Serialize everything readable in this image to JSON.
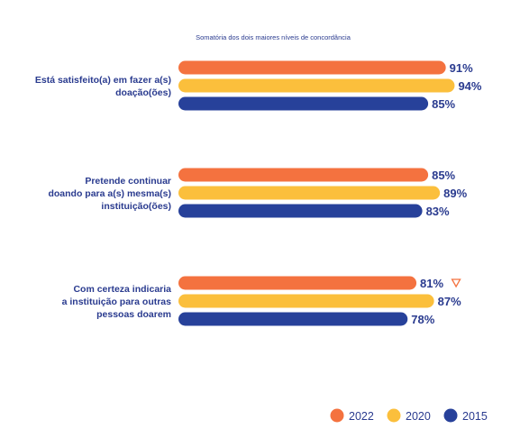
{
  "chart_data": {
    "type": "bar",
    "orientation": "horizontal",
    "subtitle": "Somatória dos dois maiores níveis de concordância",
    "categories": [
      [
        "Está satisfeito(a) em fazer a(s)",
        "doação(ões)"
      ],
      [
        "Pretende continuar",
        "doando para a(s) mesma(s)",
        "instituição(ões)"
      ],
      [
        "Com certeza indicaria",
        "a instituição para outras",
        "pessoas doarem"
      ]
    ],
    "series": [
      {
        "name": "2022",
        "color": "#f4723f",
        "values": [
          91,
          85,
          81
        ],
        "labels": [
          "91%",
          "85%",
          "81%"
        ]
      },
      {
        "name": "2020",
        "color": "#fbbf3c",
        "values": [
          94,
          89,
          87
        ],
        "labels": [
          "94%",
          "89%",
          "87%"
        ]
      },
      {
        "name": "2015",
        "color": "#27419a",
        "values": [
          85,
          83,
          78
        ],
        "labels": [
          "85%",
          "83%",
          "78%"
        ]
      }
    ],
    "annotations": [
      {
        "category_index": 2,
        "series": "2022",
        "symbol": "down-triangle-icon",
        "color": "#f4723f"
      }
    ],
    "legend": {
      "position": "bottom-right"
    },
    "grid": false
  }
}
